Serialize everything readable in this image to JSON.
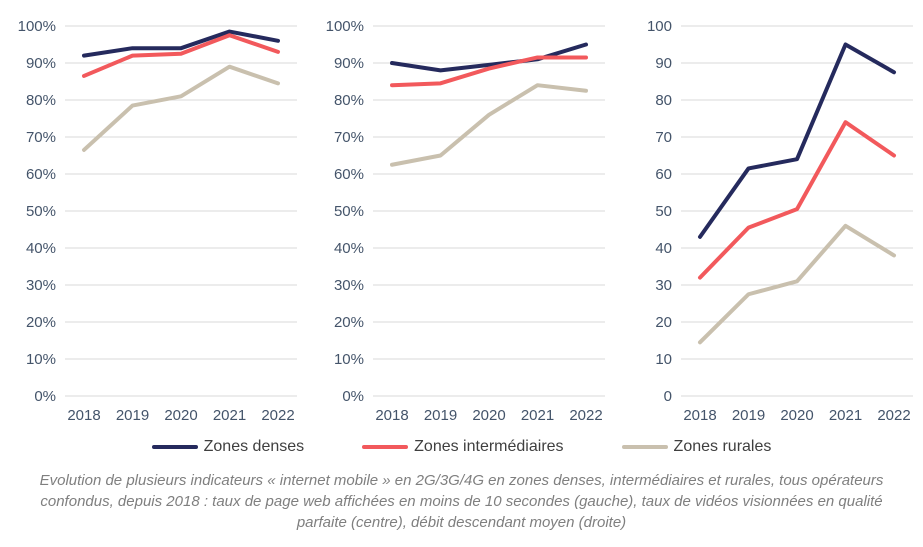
{
  "colors": {
    "denses": "#252a5d",
    "intermediaires": "#f2595c",
    "rurales": "#c9c0ae",
    "gridline": "#d9d9d9",
    "axis_label": "#44546a",
    "legend_text": "#3f3f3f",
    "caption_text": "#7f7f7f"
  },
  "chart_data": [
    {
      "type": "line",
      "title": "Taux de page web affichées en moins de 10 secondes (gauche)",
      "x": [
        "2018",
        "2019",
        "2020",
        "2021",
        "2022"
      ],
      "ylim": [
        0,
        100
      ],
      "ytick_step": 10,
      "unit": "%",
      "grid": true,
      "series": [
        {
          "name": "Zones denses",
          "color": "#252a5d",
          "values": [
            92,
            94,
            94,
            98.5,
            96
          ]
        },
        {
          "name": "Zones intermédiaires",
          "color": "#f2595c",
          "values": [
            86.5,
            92,
            92.5,
            97.5,
            93
          ]
        },
        {
          "name": "Zones rurales",
          "color": "#c9c0ae",
          "values": [
            66.5,
            78.5,
            81,
            89,
            84.5
          ]
        }
      ]
    },
    {
      "type": "line",
      "title": "Taux de vidéos visionnées en qualité parfaite (centre)",
      "x": [
        "2018",
        "2019",
        "2020",
        "2021",
        "2022"
      ],
      "ylim": [
        0,
        100
      ],
      "ytick_step": 10,
      "unit": "%",
      "grid": true,
      "series": [
        {
          "name": "Zones denses",
          "color": "#252a5d",
          "values": [
            90,
            88,
            89.5,
            91,
            95
          ]
        },
        {
          "name": "Zones intermédiaires",
          "color": "#f2595c",
          "values": [
            84,
            84.5,
            88.5,
            91.5,
            91.5
          ]
        },
        {
          "name": "Zones rurales",
          "color": "#c9c0ae",
          "values": [
            62.5,
            65,
            76,
            84,
            82.5
          ]
        }
      ]
    },
    {
      "type": "line",
      "title": "Débit descendant moyen (droite)",
      "x": [
        "2018",
        "2019",
        "2020",
        "2021",
        "2022"
      ],
      "ylim": [
        0,
        100
      ],
      "ytick_step": 10,
      "unit": "",
      "grid": true,
      "series": [
        {
          "name": "Zones denses",
          "color": "#252a5d",
          "values": [
            43,
            61.5,
            64,
            95,
            87.5
          ]
        },
        {
          "name": "Zones intermédiaires",
          "color": "#f2595c",
          "values": [
            32,
            45.5,
            50.5,
            74,
            65
          ]
        },
        {
          "name": "Zones rurales",
          "color": "#c9c0ae",
          "values": [
            14.5,
            27.5,
            31,
            46,
            38
          ]
        }
      ]
    }
  ],
  "legend": {
    "items": [
      {
        "label": "Zones denses",
        "color": "#252a5d"
      },
      {
        "label": "Zones intermédiaires",
        "color": "#f2595c"
      },
      {
        "label": "Zones rurales",
        "color": "#c9c0ae"
      }
    ]
  },
  "caption": "Evolution de plusieurs indicateurs « internet mobile » en 2G/3G/4G en zones denses, intermédiaires et rurales, tous opérateurs confondus, depuis 2018 : taux de page web affichées en moins de 10 secondes (gauche), taux de vidéos visionnées en qualité parfaite (centre), débit descendant moyen (droite)"
}
